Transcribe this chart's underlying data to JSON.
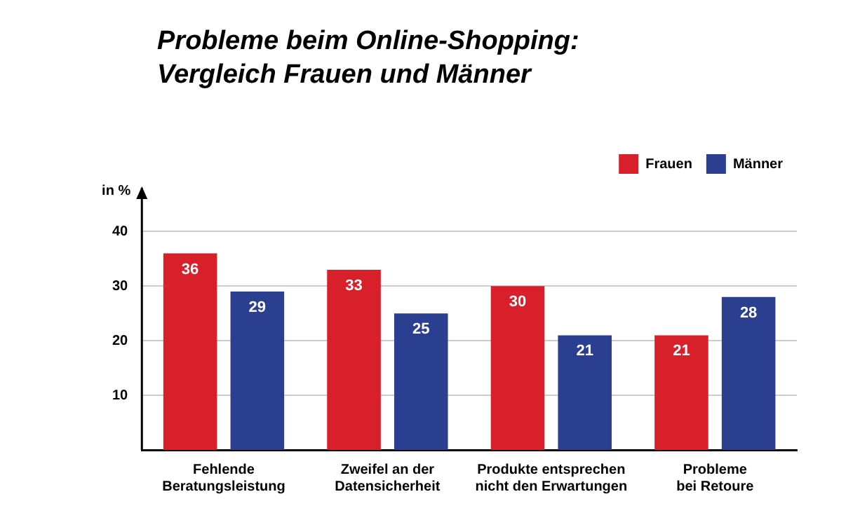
{
  "chart_data": {
    "type": "bar",
    "title": "Probleme beim Online-Shopping:\nVergleich Frauen und Männer",
    "ylabel": "in %",
    "categories": [
      "Fehlende\nBeratungsleistung",
      "Zweifel an der\nDatensicherheit",
      "Produkte entsprechen\nnicht den Erwartungen",
      "Probleme\nbei Retoure"
    ],
    "series": [
      {
        "name": "Frauen",
        "color": "#d7202a",
        "values": [
          36,
          33,
          30,
          21
        ]
      },
      {
        "name": "Männer",
        "color": "#2a3f8f",
        "values": [
          29,
          25,
          21,
          28
        ]
      }
    ],
    "ylim": [
      0,
      48
    ],
    "yticks": [
      10,
      20,
      30,
      40
    ],
    "grid": "y",
    "legend": "top right",
    "data_labels": true
  }
}
